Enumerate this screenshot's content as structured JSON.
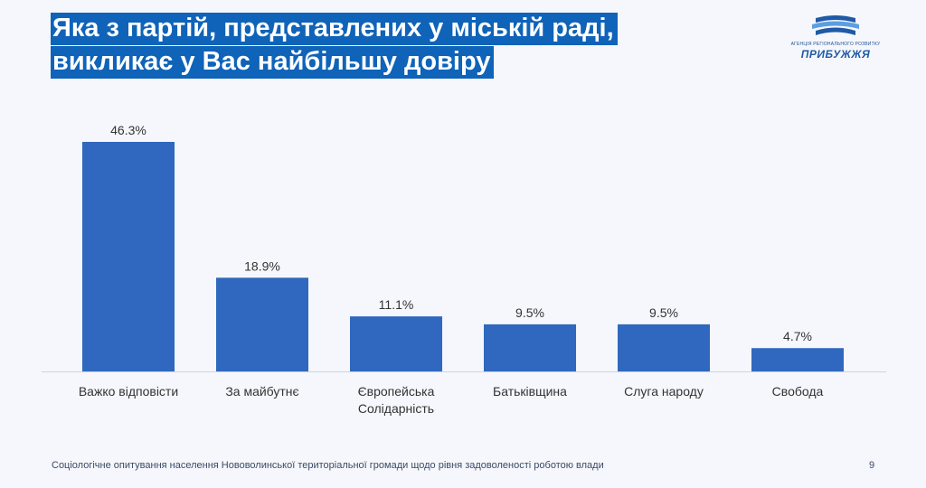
{
  "title_lines": [
    "Яка з партій, представлених у міській раді,",
    "викликає у Вас найбільшу довіру"
  ],
  "logo": {
    "caption": "АГЕНЦІЯ РЕГІОНАЛЬНОГО РОЗВИТКУ",
    "name": "ПРИБУЖЖЯ",
    "colors": {
      "wave_dark": "#1f5aa6",
      "wave_light": "#5c9ee0"
    }
  },
  "chart_data": {
    "type": "bar",
    "categories": [
      [
        "Важко відповісти"
      ],
      [
        "За майбутнє"
      ],
      [
        "Європейська",
        "Солідарність"
      ],
      [
        "Батьківщина"
      ],
      [
        "Слуга народу"
      ],
      [
        "Свобода"
      ]
    ],
    "values": [
      46.3,
      18.9,
      11.1,
      9.5,
      9.5,
      4.7
    ],
    "value_labels": [
      "46.3%",
      "18.9%",
      "11.1%",
      "9.5%",
      "9.5%",
      "4.7%"
    ],
    "ylim": [
      0,
      46.3
    ],
    "grid": false,
    "legend": "none",
    "bar_color": "#2f68be"
  },
  "footer": "Соціологічне опитування населення Нововолинської територіальної громади щодо рівня задоволеності роботою влади",
  "page_number": "9"
}
